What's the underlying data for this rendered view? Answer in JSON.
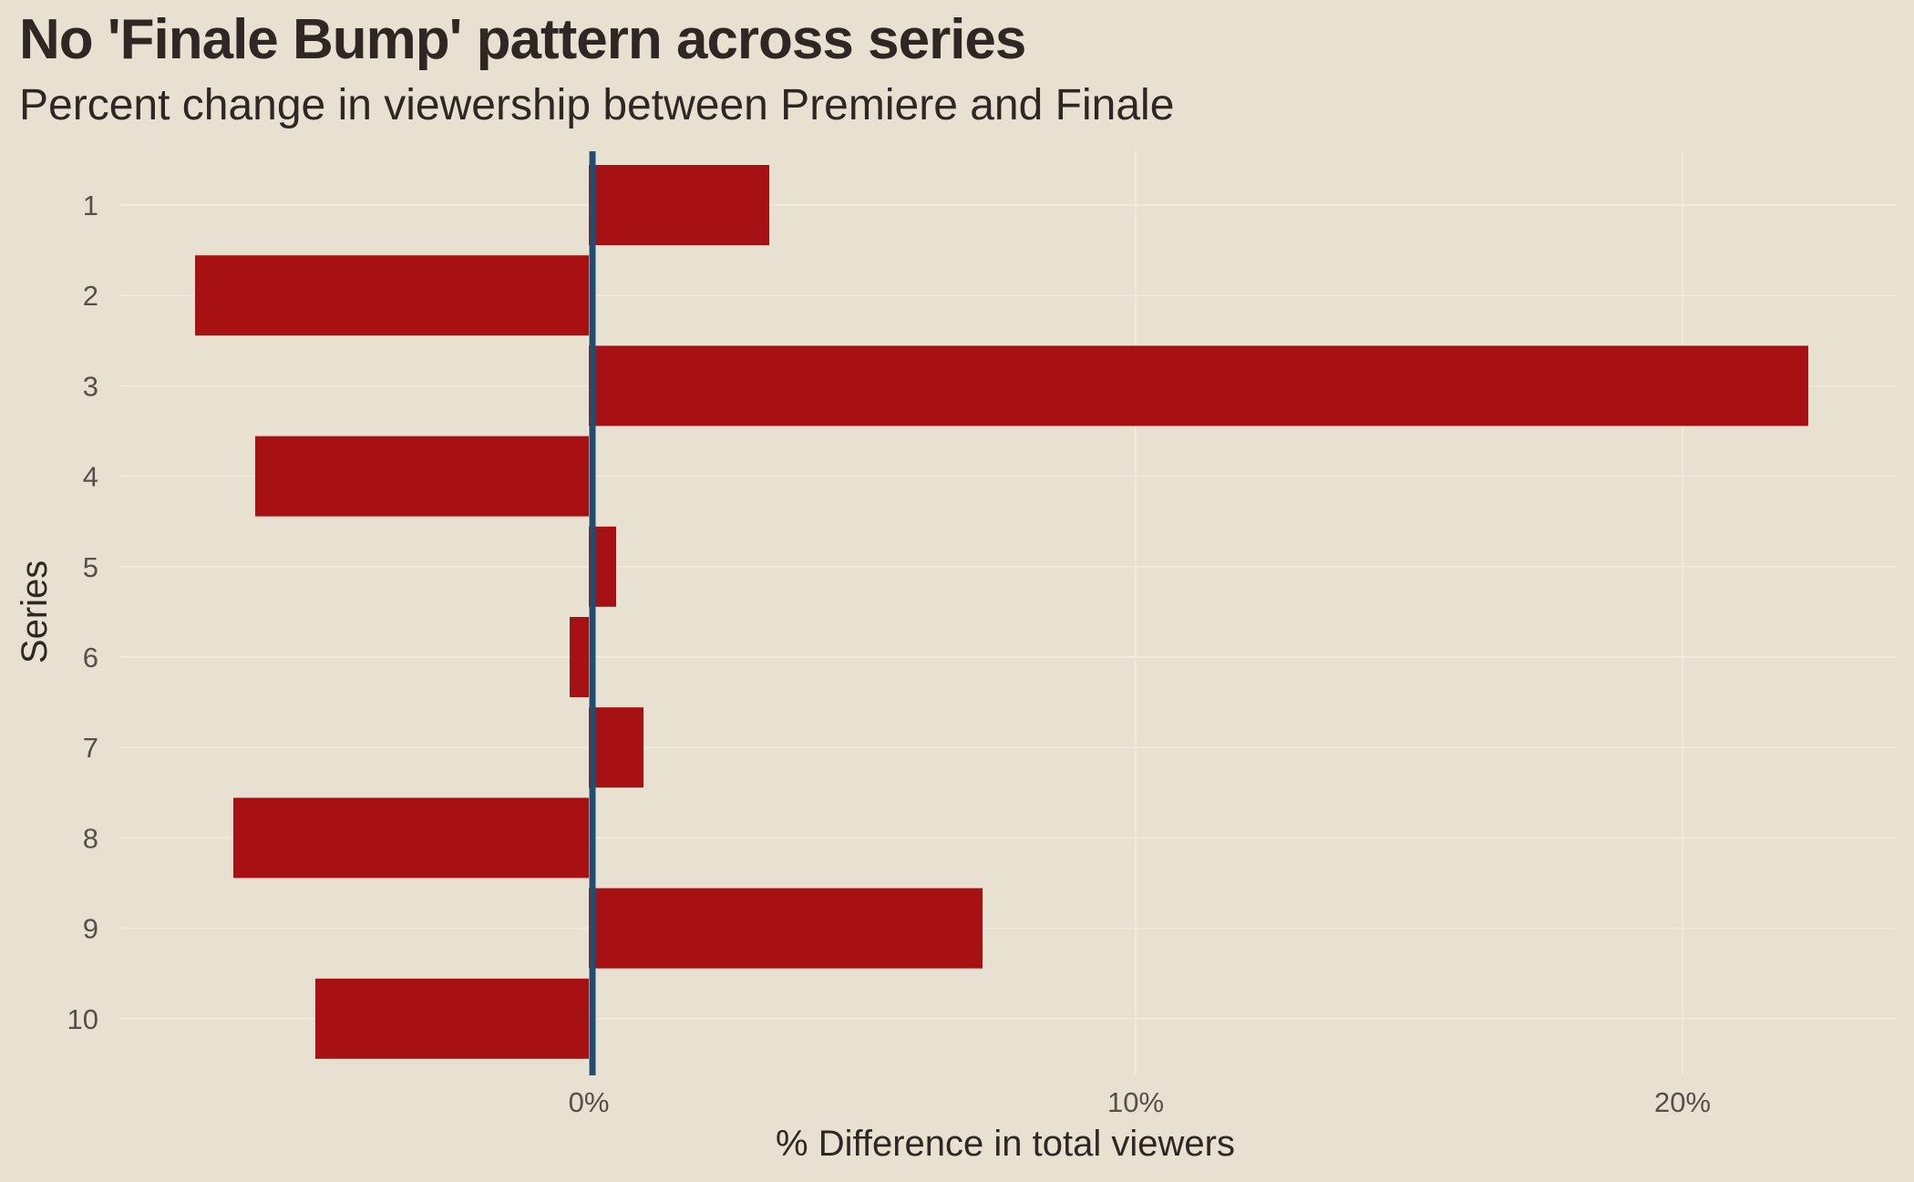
{
  "chart_data": {
    "type": "bar",
    "orientation": "horizontal",
    "title": "No 'Finale Bump' pattern across series",
    "subtitle": "Percent change in viewership between Premiere and Finale",
    "xlabel": "% Difference in total viewers",
    "ylabel": "Series",
    "categories": [
      "1",
      "2",
      "3",
      "4",
      "5",
      "6",
      "7",
      "8",
      "9",
      "10"
    ],
    "values": [
      3.3,
      -7.2,
      22.3,
      -6.1,
      0.5,
      -0.35,
      1.0,
      -6.5,
      7.2,
      -5.0
    ],
    "xlim": [
      -8.6,
      23.9
    ],
    "x_ticks": [
      0,
      10,
      20
    ],
    "x_tick_labels": [
      "0%",
      "10%",
      "20%"
    ],
    "reference_line_x": 0,
    "grid": true,
    "colors": {
      "background": "#E8E0D0",
      "bar": "#A81113",
      "reference_line": "#1F4E6E",
      "grid": "#F1ECE2",
      "text": "#2E2724",
      "tick_text": "#555049"
    }
  }
}
